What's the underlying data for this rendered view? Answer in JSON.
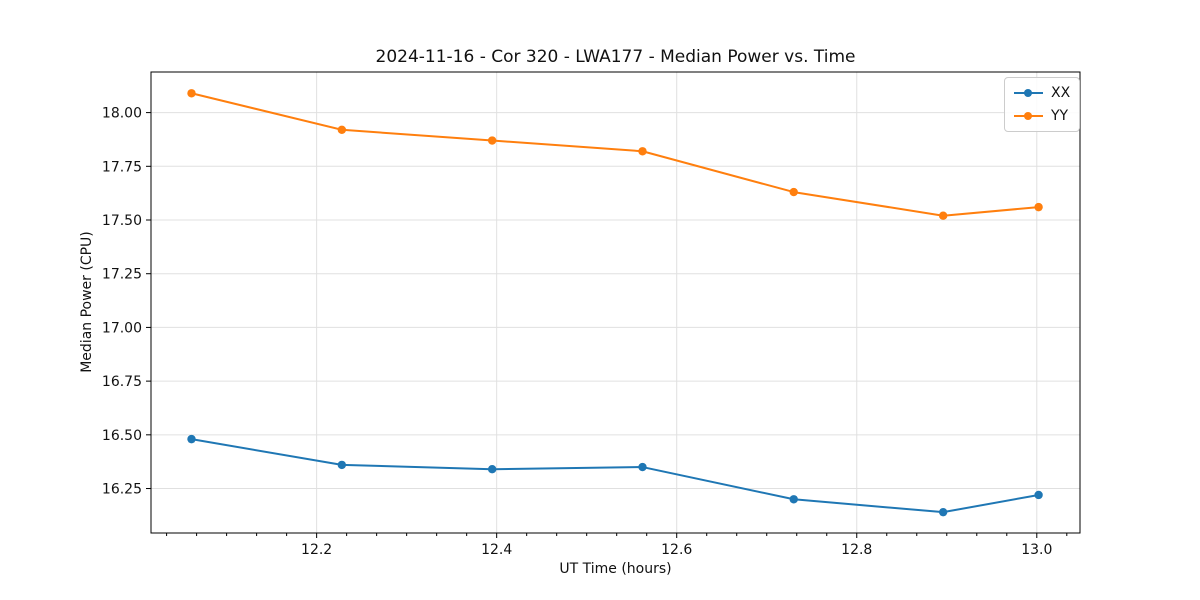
{
  "figure": {
    "background": "#ffffff"
  },
  "chart_data": {
    "type": "line",
    "title": "2024-11-16 - Cor 320 - LWA177 - Median Power vs. Time",
    "xlabel": "UT Time (hours)",
    "ylabel": "Median Power (CPU)",
    "x": [
      12.061,
      12.228,
      12.395,
      12.562,
      12.73,
      12.896,
      13.002
    ],
    "series": [
      {
        "name": "XX",
        "color": "#1f77b4",
        "values": [
          16.48,
          16.36,
          16.34,
          16.35,
          16.2,
          16.14,
          16.22
        ]
      },
      {
        "name": "YY",
        "color": "#ff7f0e",
        "values": [
          18.09,
          17.92,
          17.87,
          17.82,
          17.63,
          17.52,
          17.56
        ]
      }
    ],
    "xlim": [
      12.016,
      13.048
    ],
    "ylim": [
      16.043,
      18.189
    ],
    "xticks": [
      12.2,
      12.4,
      12.6,
      12.8,
      13.0
    ],
    "yticks": [
      16.25,
      16.5,
      16.75,
      17.0,
      17.25,
      17.5,
      17.75,
      18.0
    ],
    "x_minor_divisions": 6,
    "grid": true,
    "legend_position": "upper right",
    "marker": "circle"
  },
  "colors": {
    "grid": "#e0e0e0",
    "spine": "#000000",
    "tick_text": "#111111",
    "legend_border": "#cccccc"
  }
}
